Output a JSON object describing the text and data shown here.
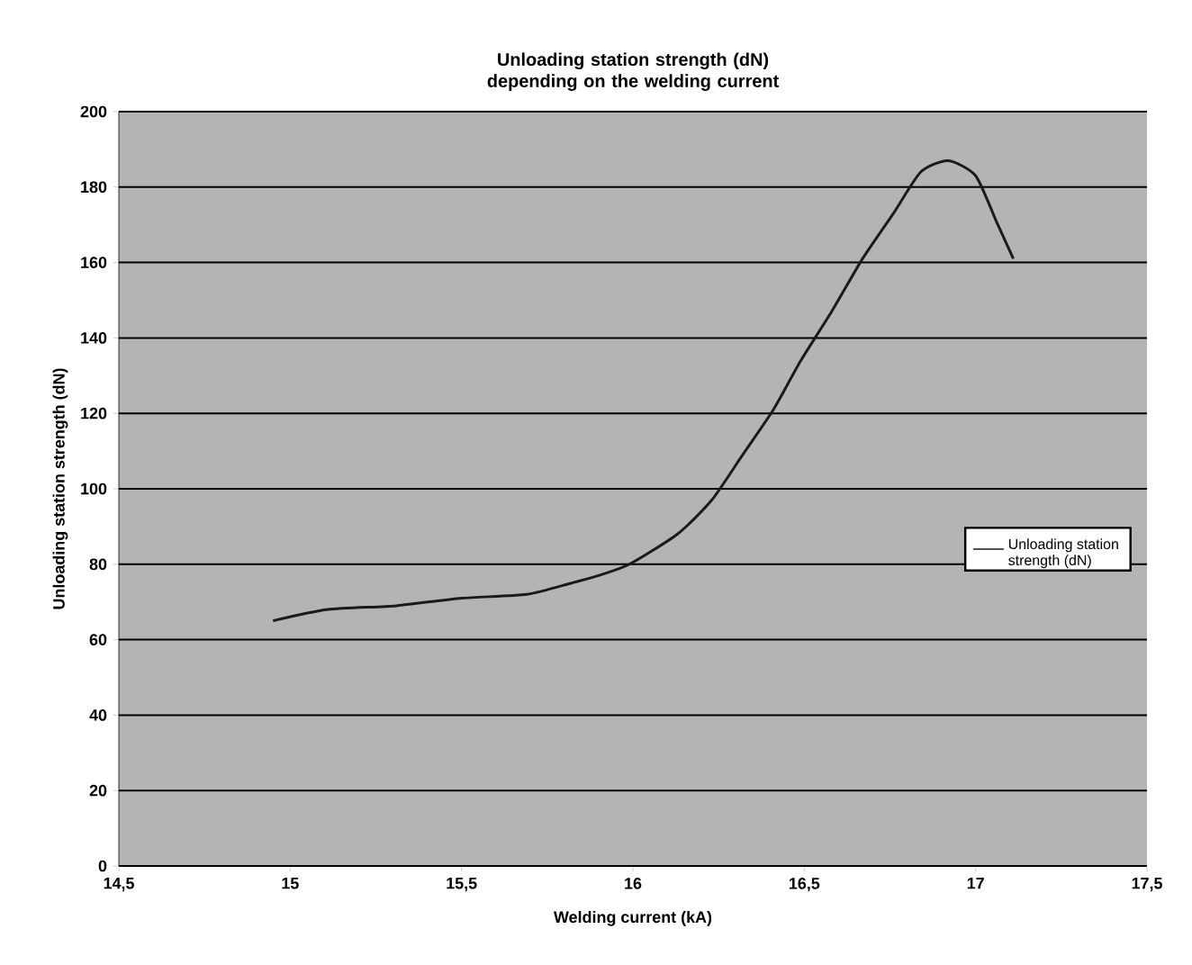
{
  "chart_data": {
    "type": "line",
    "title": "Unloading station strength (dN) depending on the welding current",
    "xlabel": "Welding current (kA)",
    "ylabel": "Unloading station strength (dN)",
    "x": [
      14.95,
      15.11,
      15.31,
      15.5,
      15.69,
      15.82,
      15.9,
      15.99,
      16.13,
      16.23,
      16.32,
      16.41,
      16.49,
      16.58,
      16.67,
      16.76,
      16.84,
      16.92,
      17.0,
      17.06,
      17.11
    ],
    "series": [
      {
        "name": "Unloading station strength (dN)",
        "color": "#1a1a1a",
        "values": [
          65,
          68,
          69,
          71,
          72,
          75,
          77,
          80,
          88,
          97,
          109,
          121,
          134,
          147,
          161,
          173,
          184,
          187,
          183,
          171,
          161
        ]
      }
    ],
    "xlim": [
      14.5,
      17.5
    ],
    "xticks": [
      {
        "value": 14.5,
        "label": "14,5"
      },
      15,
      {
        "value": 15.5,
        "label": "15,5"
      },
      16,
      {
        "value": 16.5,
        "label": "16,5"
      },
      17,
      {
        "value": 17.5,
        "label": "17,5"
      }
    ],
    "ylim": [
      0,
      200
    ],
    "yticks": [
      0,
      20,
      40,
      60,
      80,
      100,
      120,
      140,
      160,
      180,
      200
    ],
    "grid": "y",
    "legend": "right",
    "marker": "none",
    "line_style": "solid"
  }
}
